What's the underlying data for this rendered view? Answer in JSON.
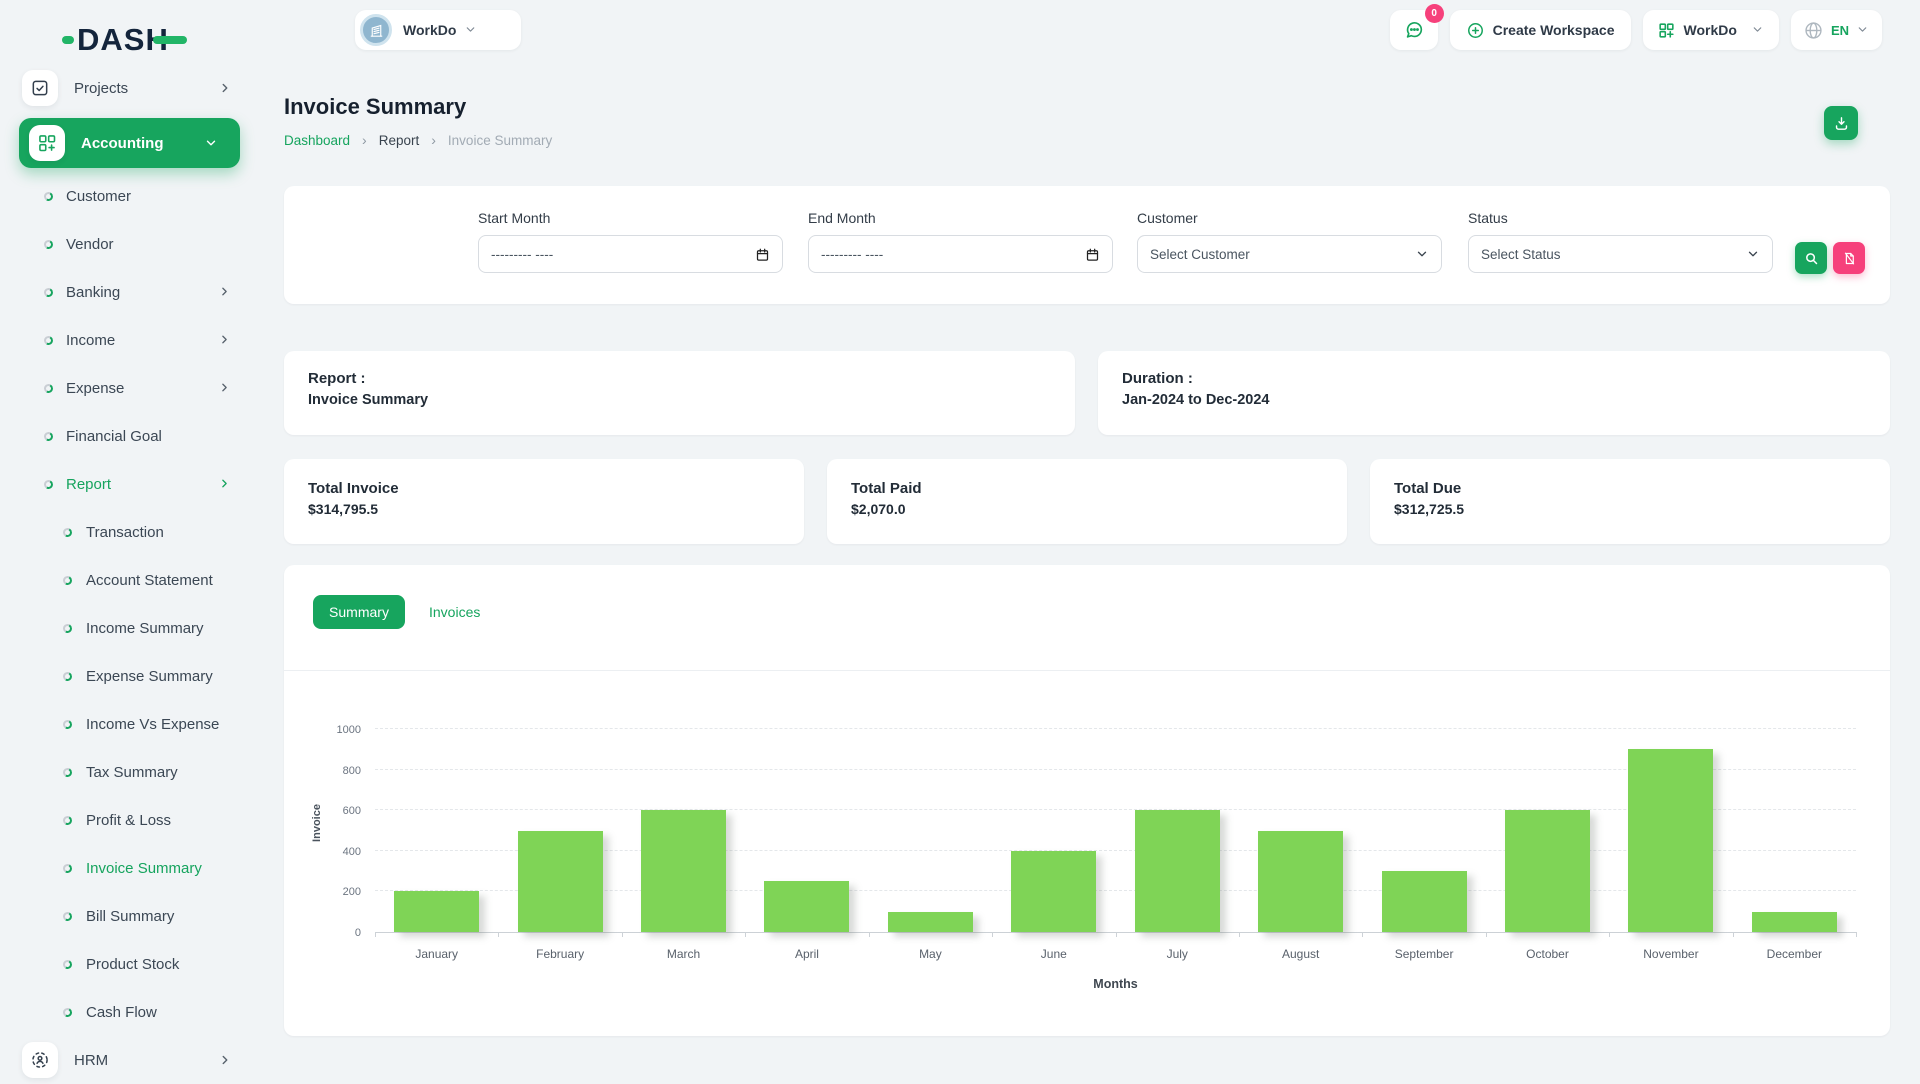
{
  "colors": {
    "primary_green": "#17a55e",
    "bar_green": "#7fd456",
    "pink": "#f6407b",
    "dark_text": "#16202e"
  },
  "logo": {
    "text": "DASH"
  },
  "topbar": {
    "workspace": {
      "name": "WorkDo"
    },
    "chat_badge": "0",
    "create_workspace": "Create Workspace",
    "app_menu": "WorkDo",
    "language": "EN"
  },
  "sidebar": {
    "items": [
      {
        "label": "Projects"
      },
      {
        "label": "Accounting"
      },
      {
        "label": "Customer"
      },
      {
        "label": "Vendor"
      },
      {
        "label": "Banking"
      },
      {
        "label": "Income"
      },
      {
        "label": "Expense"
      },
      {
        "label": "Financial Goal"
      },
      {
        "label": "Report"
      },
      {
        "label": "Transaction"
      },
      {
        "label": "Account Statement"
      },
      {
        "label": "Income Summary"
      },
      {
        "label": "Expense Summary"
      },
      {
        "label": "Income Vs Expense"
      },
      {
        "label": "Tax Summary"
      },
      {
        "label": "Profit & Loss"
      },
      {
        "label": "Invoice Summary"
      },
      {
        "label": "Bill Summary"
      },
      {
        "label": "Product Stock"
      },
      {
        "label": "Cash Flow"
      },
      {
        "label": "HRM"
      }
    ]
  },
  "page": {
    "title": "Invoice Summary",
    "breadcrumb": [
      "Dashboard",
      "Report",
      "Invoice Summary"
    ]
  },
  "filters": {
    "start_month_label": "Start Month",
    "end_month_label": "End Month",
    "month_placeholder": "--------- ----",
    "customer_label": "Customer",
    "customer_value": "Select Customer",
    "status_label": "Status",
    "status_value": "Select Status"
  },
  "report_card": {
    "label": "Report :",
    "value": "Invoice Summary"
  },
  "duration_card": {
    "label": "Duration :",
    "value": "Jan-2024 to Dec-2024"
  },
  "totals": [
    {
      "label": "Total Invoice",
      "value": "$314,795.5"
    },
    {
      "label": "Total Paid",
      "value": "$2,070.0"
    },
    {
      "label": "Total Due",
      "value": "$312,725.5"
    }
  ],
  "tabs": {
    "summary": "Summary",
    "invoices": "Invoices"
  },
  "chart_data": {
    "type": "bar",
    "categories": [
      "January",
      "February",
      "March",
      "April",
      "May",
      "June",
      "July",
      "August",
      "September",
      "October",
      "November",
      "December"
    ],
    "values": [
      200,
      500,
      600,
      250,
      100,
      400,
      600,
      500,
      300,
      600,
      900,
      100
    ],
    "title": "",
    "xlabel": "Months",
    "ylabel": "Invoice",
    "ylim": [
      0,
      1000
    ],
    "yticks": [
      0,
      200,
      400,
      600,
      800,
      1000
    ],
    "grid": true,
    "bar_color": "#7fd456",
    "legend": "none"
  }
}
